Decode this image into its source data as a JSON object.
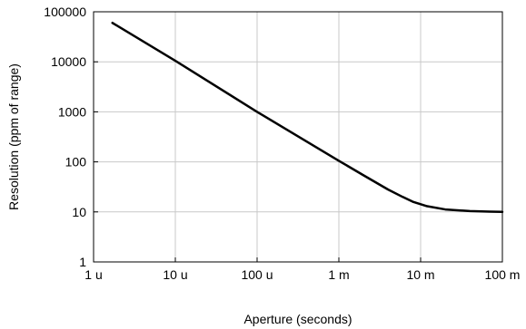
{
  "chart_data": {
    "type": "line",
    "title": "",
    "xlabel": "Aperture (seconds)",
    "ylabel": "Resolution (ppm of range)",
    "xscale": "log",
    "yscale": "log",
    "xlim": [
      1e-06,
      0.1
    ],
    "ylim": [
      1,
      100000
    ],
    "grid": true,
    "x_ticks": [
      {
        "value": 1e-06,
        "label": "1 u"
      },
      {
        "value": 1e-05,
        "label": "10 u"
      },
      {
        "value": 0.0001,
        "label": "100 u"
      },
      {
        "value": 0.001,
        "label": "1 m"
      },
      {
        "value": 0.01,
        "label": "10 m"
      },
      {
        "value": 0.1,
        "label": "100 m"
      }
    ],
    "y_ticks": [
      {
        "value": 1,
        "label": "1"
      },
      {
        "value": 10,
        "label": "10"
      },
      {
        "value": 100,
        "label": "100"
      },
      {
        "value": 1000,
        "label": "1000"
      },
      {
        "value": 10000,
        "label": "10000"
      },
      {
        "value": 100000,
        "label": "100000"
      }
    ],
    "series": [
      {
        "name": "",
        "color": "#000000",
        "points": [
          [
            1.7e-06,
            60000
          ],
          [
            1e-05,
            10500
          ],
          [
            0.0001,
            1000
          ],
          [
            0.001,
            105
          ],
          [
            0.002,
            54
          ],
          [
            0.004,
            28
          ],
          [
            0.006,
            20
          ],
          [
            0.008,
            16
          ],
          [
            0.012,
            13
          ],
          [
            0.02,
            11.2
          ],
          [
            0.04,
            10.4
          ],
          [
            0.07,
            10.1
          ],
          [
            0.1,
            10
          ]
        ]
      }
    ]
  }
}
